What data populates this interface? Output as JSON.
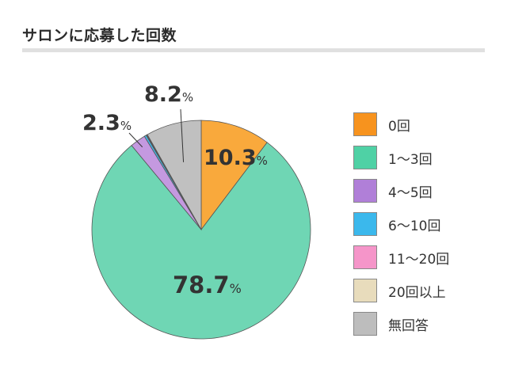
{
  "chart_data": {
    "type": "pie",
    "title": "サロンに応募した回数",
    "unit": "%",
    "slices": [
      {
        "label": "0回",
        "value": 10.3,
        "value_text": "10.3",
        "color": "#f9a93c"
      },
      {
        "label": "1〜3回",
        "value": 78.7,
        "value_text": "78.7",
        "color": "#6fd6b4"
      },
      {
        "label": "4〜5回",
        "value": 2.3,
        "value_text": "2.3",
        "color": "#c499e0"
      },
      {
        "label": "6〜10回",
        "value": 0.3,
        "value_text": "",
        "color": "#44b9ea"
      },
      {
        "label": "11〜20回",
        "value": 0.1,
        "value_text": "",
        "color": "#f59ccb"
      },
      {
        "label": "20回以上",
        "value": 0.1,
        "value_text": "",
        "color": "#e9dcc0"
      },
      {
        "label": "無回答",
        "value": 8.2,
        "value_text": "8.2",
        "color": "#c0c0c0"
      }
    ],
    "legend_position": "right"
  },
  "legend_colors": {
    "0回": "#f7931e",
    "1〜3回": "#4fd1a5",
    "4〜5回": "#b07fd8",
    "6〜10回": "#3bb8ec",
    "11〜20回": "#f595c9",
    "20回以上": "#e8dcbc",
    "無回答": "#bdbdbd"
  }
}
